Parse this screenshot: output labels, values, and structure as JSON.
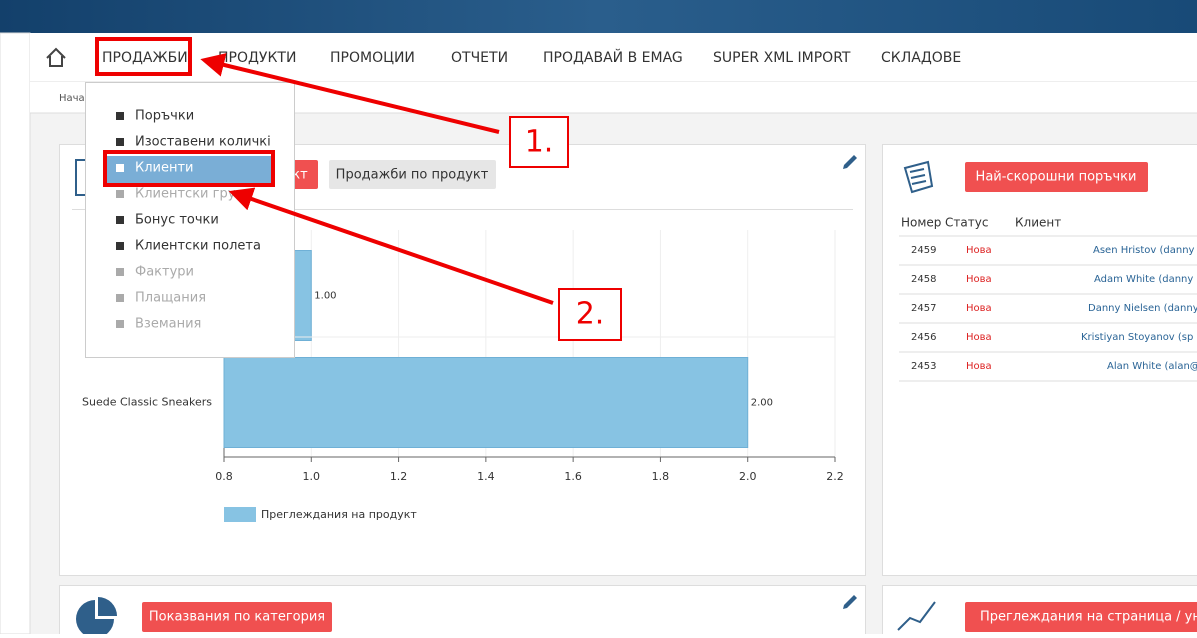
{
  "nav": {
    "items": [
      "ПРОДАЖБИ",
      "ПРОДУКТИ",
      "ПРОМОЦИИ",
      "ОТЧЕТИ",
      "ПРОДАВАЙ В EMAG",
      "SUPER XML IMPORT",
      "СКЛАДОВЕ"
    ]
  },
  "breadcrumb": "Нача",
  "dropdown": {
    "items": [
      {
        "label": "Поръчки",
        "state": "normal"
      },
      {
        "label": "Изоставени количкi",
        "state": "normal"
      },
      {
        "label": "Клиенти",
        "state": "active"
      },
      {
        "label": "Клиентски групи",
        "state": "disabled"
      },
      {
        "label": "Бонус точки",
        "state": "normal"
      },
      {
        "label": "Клиентски полета",
        "state": "normal"
      },
      {
        "label": "Фактури",
        "state": "disabled"
      },
      {
        "label": "Плащания",
        "state": "disabled"
      },
      {
        "label": "Вземания",
        "state": "disabled"
      }
    ]
  },
  "annotations": [
    "1.",
    "2."
  ],
  "sales_widget": {
    "buttons": [
      "кт",
      "Продажби по продукт"
    ],
    "chart": {
      "type": "bar",
      "orientation": "horizontal",
      "categories": [
        null,
        "Suede Classic Sneakers"
      ],
      "series": [
        {
          "name": "Преглеждания на продукт",
          "color": "#87c3e3",
          "values": [
            1.0,
            2.0
          ],
          "value_labels": [
            "1.00",
            "2.00"
          ]
        }
      ],
      "xlim": [
        0.8,
        2.2
      ],
      "xticks": [
        0.8,
        {
          "value": 1,
          "label": "1.0"
        },
        1.2,
        1.4,
        1.6,
        1.8,
        {
          "value": 2,
          "label": "2.0"
        },
        2.2
      ],
      "grid": true
    }
  },
  "orders_widget": {
    "button": "Най-скорошни поръчки",
    "headers": [
      "Номер",
      "Статус",
      "Клиент"
    ],
    "rows": [
      [
        2459,
        "Нова",
        "Asen Hristov (danny"
      ],
      [
        2458,
        "Нова",
        "Adam White (danny"
      ],
      [
        2457,
        "Нова",
        "Danny Nielsen (danny"
      ],
      [
        2456,
        "Нова",
        "Kristiyan Stoyanov (sp"
      ],
      [
        2453,
        "Нова",
        "Alan White (alan@"
      ]
    ]
  },
  "category_widget": {
    "button": "Показвания по категория"
  },
  "pageviews_widget": {
    "button": "Преглеждания на страница / уника"
  }
}
